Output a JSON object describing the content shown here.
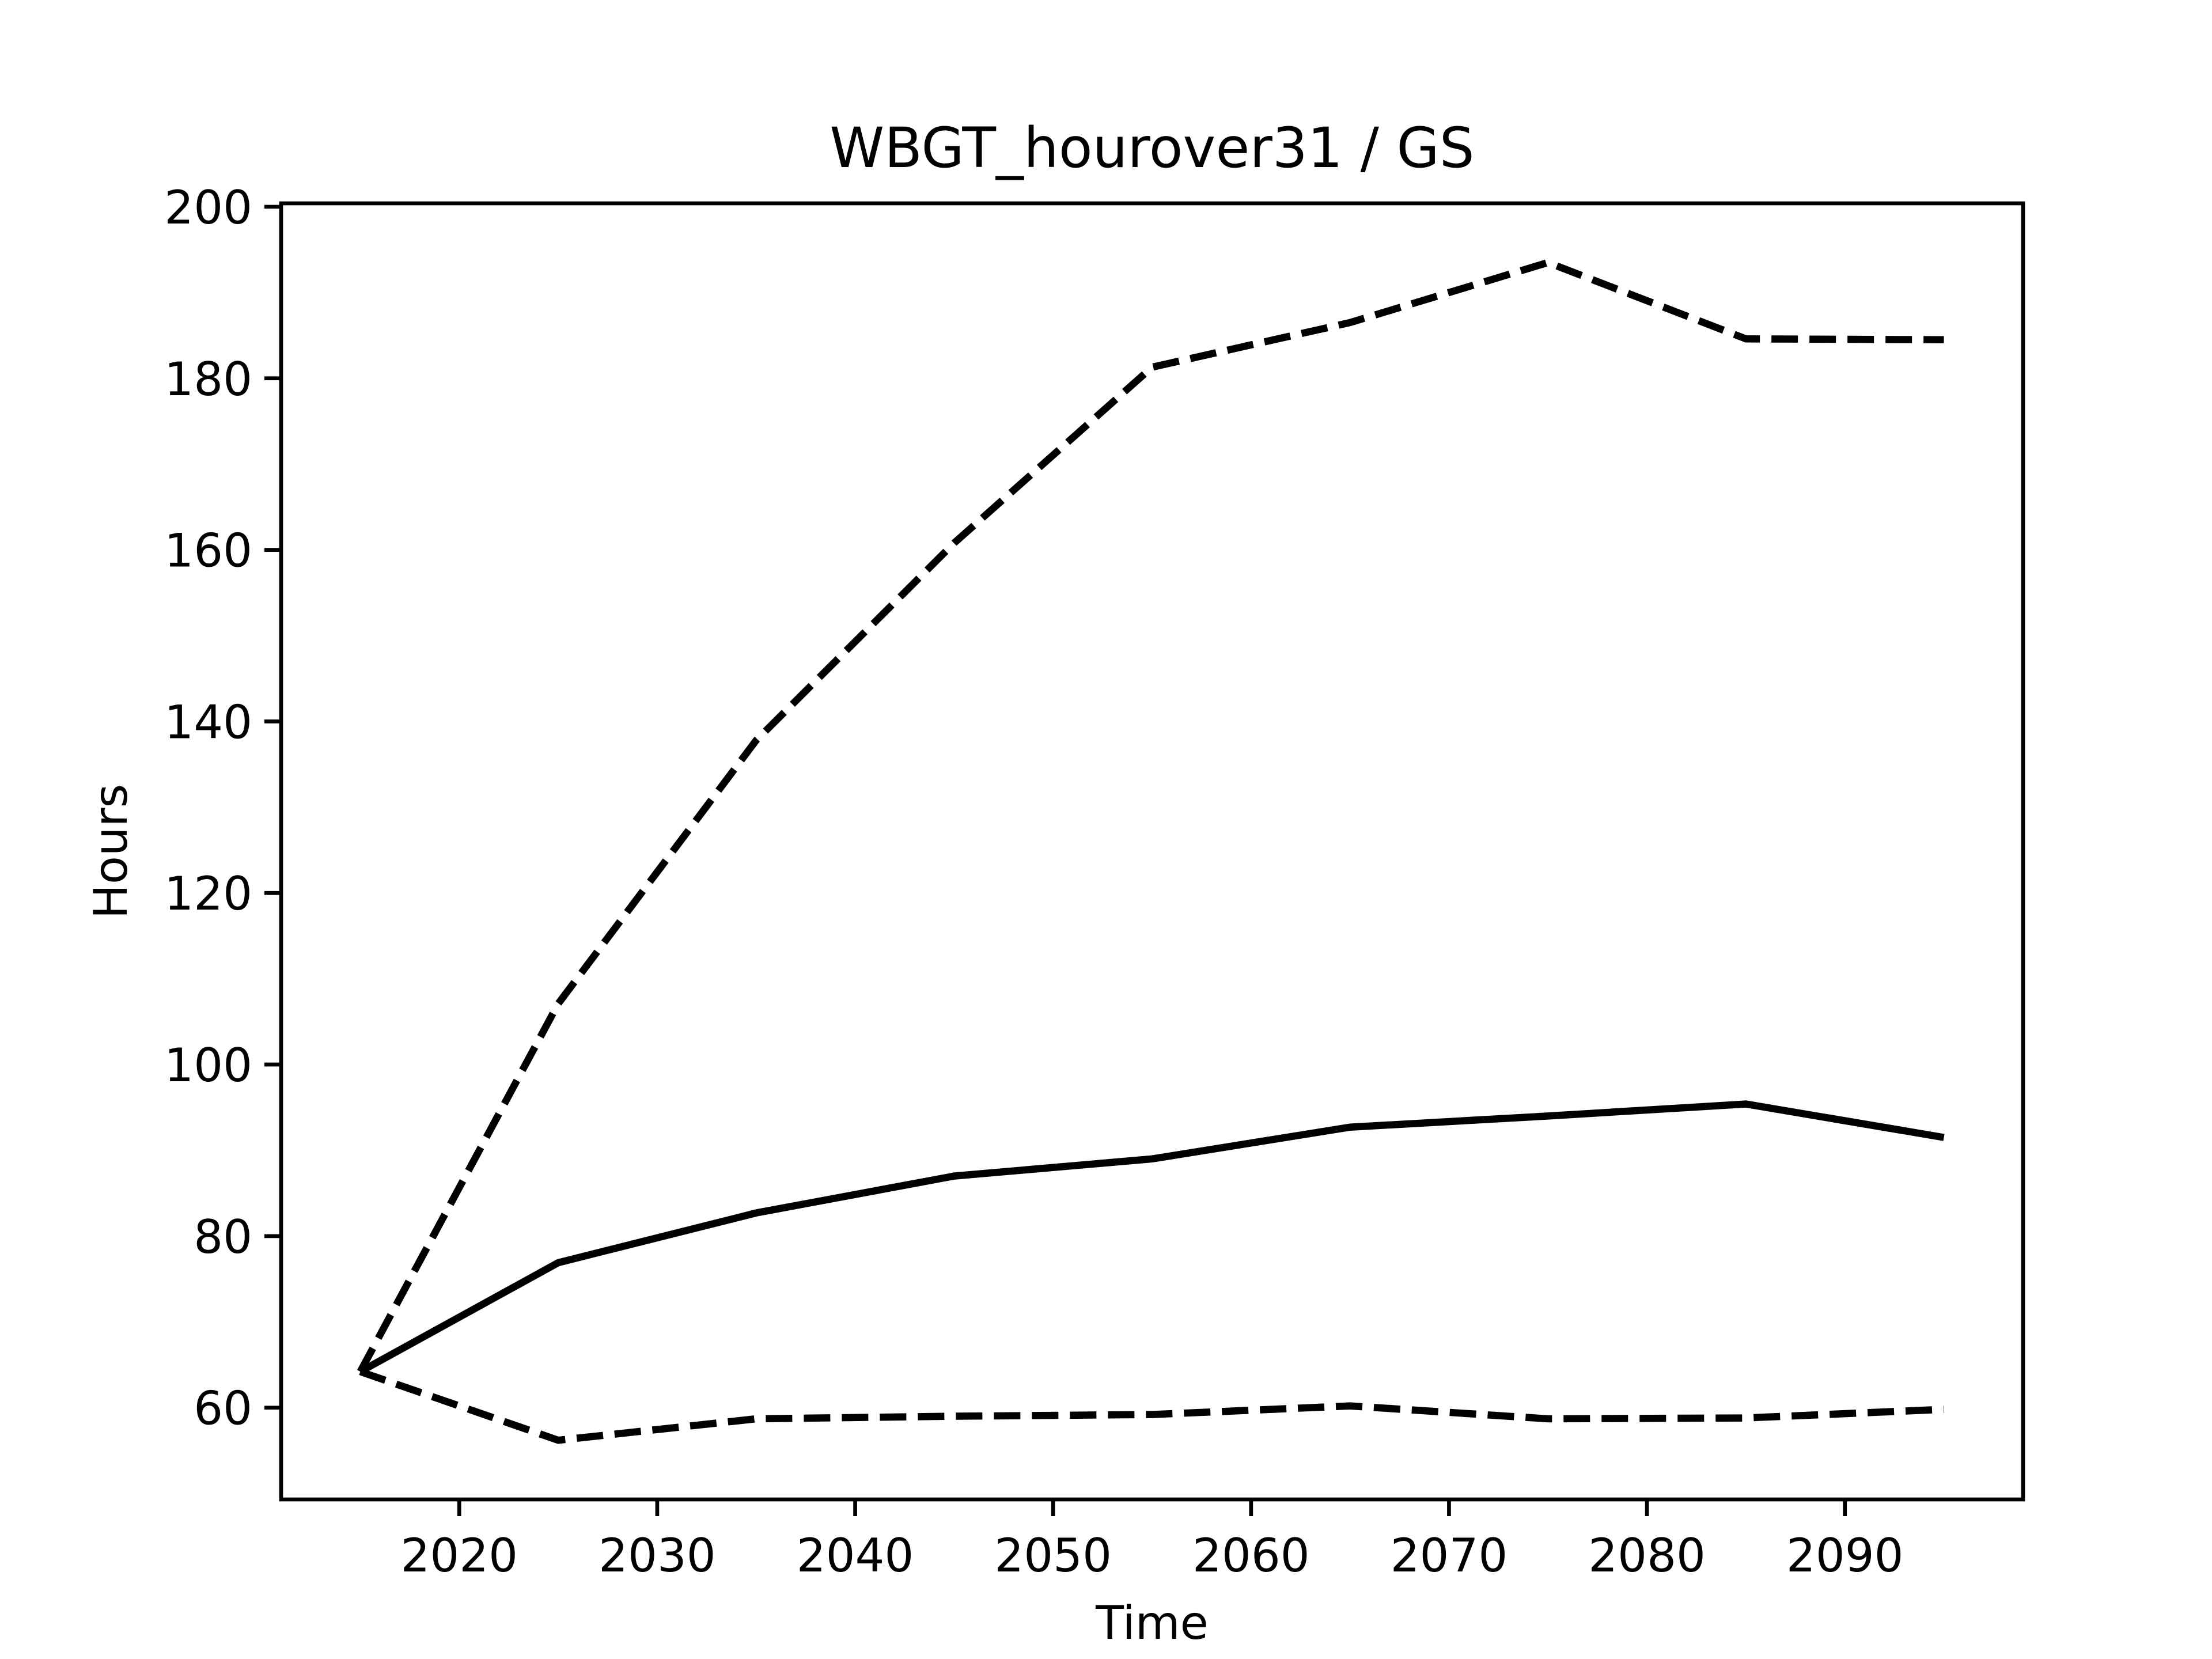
{
  "chart_data": {
    "type": "line",
    "title": "WBGT_hourover31 / GS",
    "x_label": "Time",
    "y_label": "Hours",
    "x": [
      2015,
      2025,
      2035,
      2045,
      2055,
      2065,
      2075,
      2085,
      2095
    ],
    "series": [
      {
        "color": "#000000",
        "linestyle": "solid",
        "values": [
          64.2,
          76.9,
          82.7,
          87.0,
          89.0,
          92.7,
          94.0,
          95.4,
          91.5
        ]
      },
      {
        "color": "#000000",
        "linestyle": "dashed",
        "values": [
          64.2,
          107.1,
          137.8,
          160.8,
          181.3,
          186.5,
          193.5,
          184.6,
          184.5
        ]
      },
      {
        "color": "#000000",
        "linestyle": "dashed",
        "values": [
          64.2,
          56.2,
          58.7,
          59.0,
          59.2,
          60.2,
          58.7,
          58.8,
          59.8
        ]
      }
    ],
    "xlim": [
      2011,
      2099
    ],
    "xticks": [
      2020,
      2030,
      2040,
      2050,
      2060,
      2070,
      2080,
      2090
    ],
    "ylim": [
      49.3,
      200.4
    ],
    "yticks": [
      60,
      80,
      100,
      120,
      140,
      160,
      180,
      200
    ],
    "grid": false
  }
}
